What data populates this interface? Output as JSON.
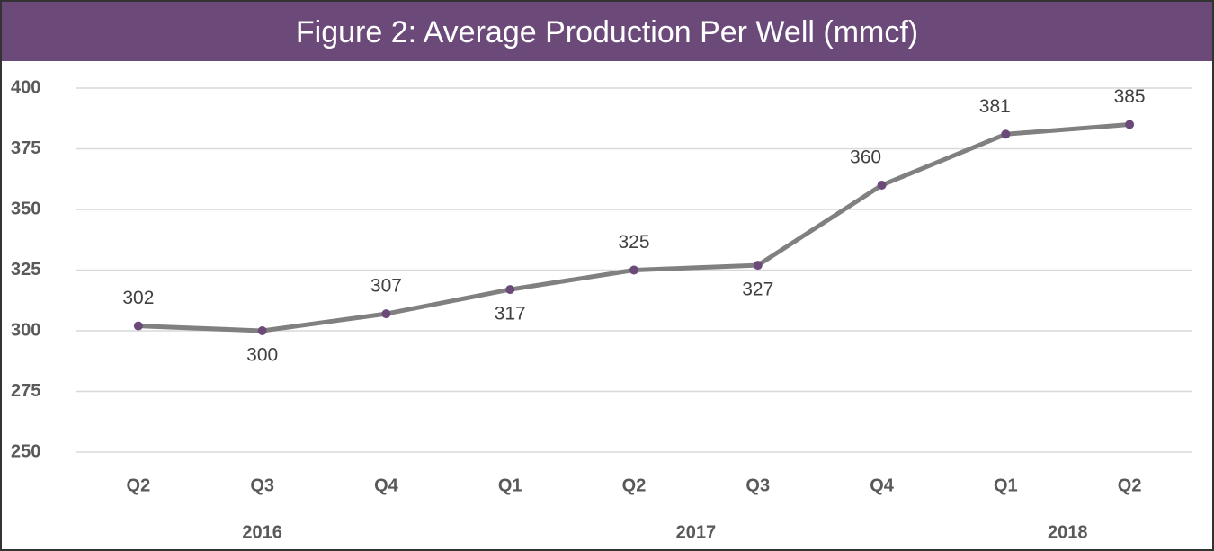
{
  "chart_data": {
    "type": "line",
    "title": "Figure 2: Average Production Per Well (mmcf)",
    "categories": [
      "Q2",
      "Q3",
      "Q4",
      "Q1",
      "Q2",
      "Q3",
      "Q4",
      "Q1",
      "Q2"
    ],
    "x_groups": [
      {
        "label": "2016",
        "count": 3
      },
      {
        "label": "2017",
        "count": 4
      },
      {
        "label": "2018",
        "count": 2
      }
    ],
    "series": [
      {
        "values": [
          302,
          300,
          307,
          317,
          325,
          327,
          360,
          381,
          385
        ],
        "color": "#808080",
        "marker_color": "#6b4a7a"
      }
    ],
    "ylim": [
      250,
      400
    ],
    "yticks": [
      250,
      275,
      300,
      325,
      350,
      375,
      400
    ],
    "grid": true,
    "title_background": "#6b4a7a"
  }
}
